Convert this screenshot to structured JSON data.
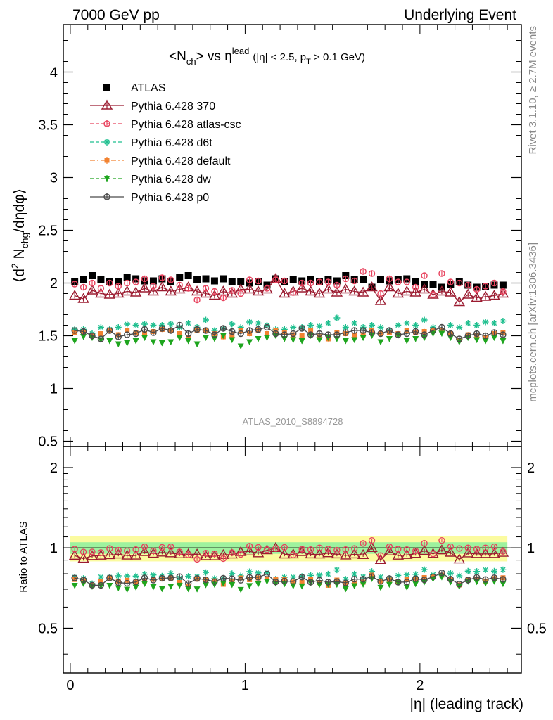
{
  "header": {
    "left": "7000 GeV pp",
    "right": "Underlying Event"
  },
  "side_labels": {
    "rivet": "Rivet 3.1.10, ≥ 2.7M events",
    "mcplots": "mcplots.cern.ch [arXiv:1306.3436]"
  },
  "colors": {
    "ATLAS": "#000000",
    "p370": "#9b1b30",
    "atlascsc": "#e8435e",
    "d6t": "#1fbf8f",
    "default": "#f28230",
    "dw": "#1ea51e",
    "p0": "#4a4a4a",
    "band_inner": "#9ef29e",
    "band_outer": "#fbfba0"
  },
  "chart_data": [
    {
      "type": "scatter",
      "title": "<N_ch> vs η^lead (|η| < 2.5, p_T > 0.1 GeV)",
      "title_parts": {
        "main_a": "<N",
        "main_sub": "ch",
        "main_b": "> vs η",
        "main_sup": "lead",
        "cut_a": "(|η| < 2.5, p",
        "cut_sub": "T",
        "cut_b": " > 0.1 GeV)"
      },
      "ylabel": "⟨d² N_chg/dηdφ⟩",
      "ylabel_parts": {
        "a": "⟨d",
        "sup": "2",
        "b": " N",
        "sub": "chg",
        "c": "/dηdφ⟩"
      },
      "watermark": "ATLAS_2010_S8894728",
      "xlim": [
        -0.04,
        2.58
      ],
      "ylim": [
        0.45,
        4.45
      ],
      "yticks": [
        "0.5",
        "1",
        "1.5",
        "2",
        "2.5",
        "3",
        "3.5",
        "4"
      ],
      "legend_position": "top-left",
      "x": [
        0.025,
        0.075,
        0.125,
        0.175,
        0.225,
        0.275,
        0.325,
        0.375,
        0.425,
        0.475,
        0.525,
        0.575,
        0.625,
        0.675,
        0.725,
        0.775,
        0.825,
        0.875,
        0.925,
        0.975,
        1.025,
        1.075,
        1.125,
        1.175,
        1.225,
        1.275,
        1.325,
        1.375,
        1.425,
        1.475,
        1.525,
        1.575,
        1.625,
        1.675,
        1.725,
        1.775,
        1.825,
        1.875,
        1.925,
        1.975,
        2.025,
        2.075,
        2.125,
        2.175,
        2.225,
        2.275,
        2.325,
        2.375,
        2.425,
        2.475
      ],
      "series": [
        {
          "name": "ATLAS",
          "key": "ATLAS",
          "marker": "square-filled",
          "values": [
            2.01,
            2.03,
            2.07,
            2.03,
            2.01,
            2.01,
            2.05,
            2.04,
            2.02,
            2.02,
            2.04,
            2.01,
            2.05,
            2.07,
            2.03,
            2.04,
            2.02,
            2.04,
            2.01,
            2.01,
            2.0,
            2.01,
            1.98,
            2.04,
            2.01,
            2.03,
            2.02,
            2.03,
            2.01,
            2.03,
            2.02,
            2.07,
            2.03,
            2.03,
            1.96,
            2.03,
            2.02,
            2.03,
            2.04,
            2.01,
            1.99,
            1.99,
            1.96,
            1.99,
            2.01,
            1.98,
            1.96,
            1.97,
            1.98,
            1.98
          ]
        },
        {
          "name": "Pythia 6.428 370",
          "key": "p370",
          "marker": "triangle-open",
          "line": "solid",
          "values": [
            1.88,
            1.85,
            1.93,
            1.9,
            1.89,
            1.9,
            1.92,
            1.91,
            1.95,
            1.92,
            1.96,
            1.92,
            1.94,
            1.96,
            1.92,
            1.9,
            1.88,
            1.92,
            1.9,
            1.94,
            1.94,
            1.92,
            1.94,
            2.04,
            1.9,
            1.92,
            1.95,
            1.92,
            1.9,
            1.94,
            1.91,
            1.94,
            1.92,
            1.91,
            1.96,
            1.83,
            1.96,
            1.9,
            1.92,
            1.91,
            1.94,
            1.89,
            1.92,
            1.91,
            1.82,
            1.89,
            1.86,
            1.87,
            1.88,
            1.9
          ]
        },
        {
          "name": "Pythia 6.428 atlas-csc",
          "key": "atlascsc",
          "marker": "circle-open",
          "line": "dashed",
          "values": [
            1.99,
            1.96,
            2.0,
            1.95,
            2.0,
            1.97,
            2.0,
            2.01,
            2.04,
            1.97,
            2.05,
            2.03,
            1.98,
            1.95,
            1.84,
            1.95,
            1.92,
            1.86,
            1.93,
            1.9,
            2.03,
            2.02,
            1.95,
            2.03,
            2.02,
            1.91,
            2.0,
            2.0,
            2.01,
            2.01,
            1.98,
            2.04,
            2.02,
            2.11,
            2.09,
            1.9,
            2.04,
            2.01,
            2.01,
            1.96,
            2.07,
            1.89,
            2.09,
            2.01,
            2.0,
            1.98,
            1.94,
            1.97,
            2.0,
            1.92
          ]
        },
        {
          "name": "Pythia 6.428 d6t",
          "key": "d6t",
          "marker": "star",
          "line": "dashed",
          "values": [
            1.56,
            1.56,
            1.52,
            1.58,
            1.56,
            1.58,
            1.61,
            1.6,
            1.61,
            1.6,
            1.6,
            1.61,
            1.58,
            1.62,
            1.58,
            1.65,
            1.55,
            1.57,
            1.61,
            1.58,
            1.63,
            1.62,
            1.6,
            1.56,
            1.56,
            1.58,
            1.58,
            1.6,
            1.59,
            1.62,
            1.67,
            1.58,
            1.62,
            1.58,
            1.6,
            1.58,
            1.55,
            1.6,
            1.62,
            1.6,
            1.65,
            1.58,
            1.55,
            1.6,
            1.58,
            1.62,
            1.6,
            1.63,
            1.62,
            1.64
          ]
        },
        {
          "name": "Pythia 6.428 default",
          "key": "default",
          "marker": "square-small",
          "line": "dashdot",
          "values": [
            1.53,
            1.53,
            1.5,
            1.52,
            1.55,
            1.51,
            1.55,
            1.53,
            1.52,
            1.54,
            1.56,
            1.55,
            1.52,
            1.48,
            1.55,
            1.55,
            1.52,
            1.49,
            1.51,
            1.55,
            1.52,
            1.55,
            1.52,
            1.55,
            1.53,
            1.51,
            1.5,
            1.55,
            1.49,
            1.47,
            1.53,
            1.52,
            1.5,
            1.51,
            1.55,
            1.52,
            1.53,
            1.52,
            1.55,
            1.53,
            1.54,
            1.55,
            1.55,
            1.52,
            1.46,
            1.51,
            1.5,
            1.48,
            1.52,
            1.53
          ]
        },
        {
          "name": "Pythia 6.428 dw",
          "key": "dw",
          "marker": "triangle-down-filled",
          "line": "dashed",
          "values": [
            1.45,
            1.49,
            1.48,
            1.46,
            1.45,
            1.42,
            1.43,
            1.45,
            1.48,
            1.44,
            1.43,
            1.44,
            1.48,
            1.45,
            1.42,
            1.48,
            1.47,
            1.5,
            1.46,
            1.4,
            1.44,
            1.47,
            1.48,
            1.5,
            1.47,
            1.46,
            1.45,
            1.5,
            1.46,
            1.48,
            1.47,
            1.45,
            1.46,
            1.48,
            1.5,
            1.44,
            1.47,
            1.5,
            1.45,
            1.47,
            1.48,
            1.52,
            1.52,
            1.48,
            1.44,
            1.48,
            1.46,
            1.45,
            1.48,
            1.45
          ]
        },
        {
          "name": "Pythia 6.428 p0",
          "key": "p0",
          "marker": "circle-open",
          "line": "solid",
          "values": [
            1.55,
            1.54,
            1.5,
            1.47,
            1.55,
            1.49,
            1.51,
            1.52,
            1.56,
            1.53,
            1.57,
            1.55,
            1.6,
            1.52,
            1.56,
            1.55,
            1.51,
            1.57,
            1.54,
            1.52,
            1.55,
            1.56,
            1.58,
            1.52,
            1.51,
            1.52,
            1.57,
            1.51,
            1.52,
            1.51,
            1.51,
            1.53,
            1.55,
            1.55,
            1.53,
            1.52,
            1.55,
            1.51,
            1.52,
            1.54,
            1.51,
            1.55,
            1.58,
            1.52,
            1.47,
            1.5,
            1.52,
            1.5,
            1.53,
            1.51
          ]
        }
      ]
    },
    {
      "type": "scatter",
      "title": "",
      "ylabel": "Ratio to ATLAS",
      "xlabel": "|η| (leading track)",
      "xlim": [
        -0.04,
        2.58
      ],
      "ylim": [
        0.34,
        2.4
      ],
      "log_y": true,
      "yticks": [
        "0.5",
        "1",
        "2"
      ],
      "xticks": [
        "0",
        "1",
        "2"
      ],
      "reference_line": 1,
      "band_inner": 0.05,
      "band_outer": 0.11,
      "series_note": "ratio = model / ATLAS per bin"
    }
  ]
}
